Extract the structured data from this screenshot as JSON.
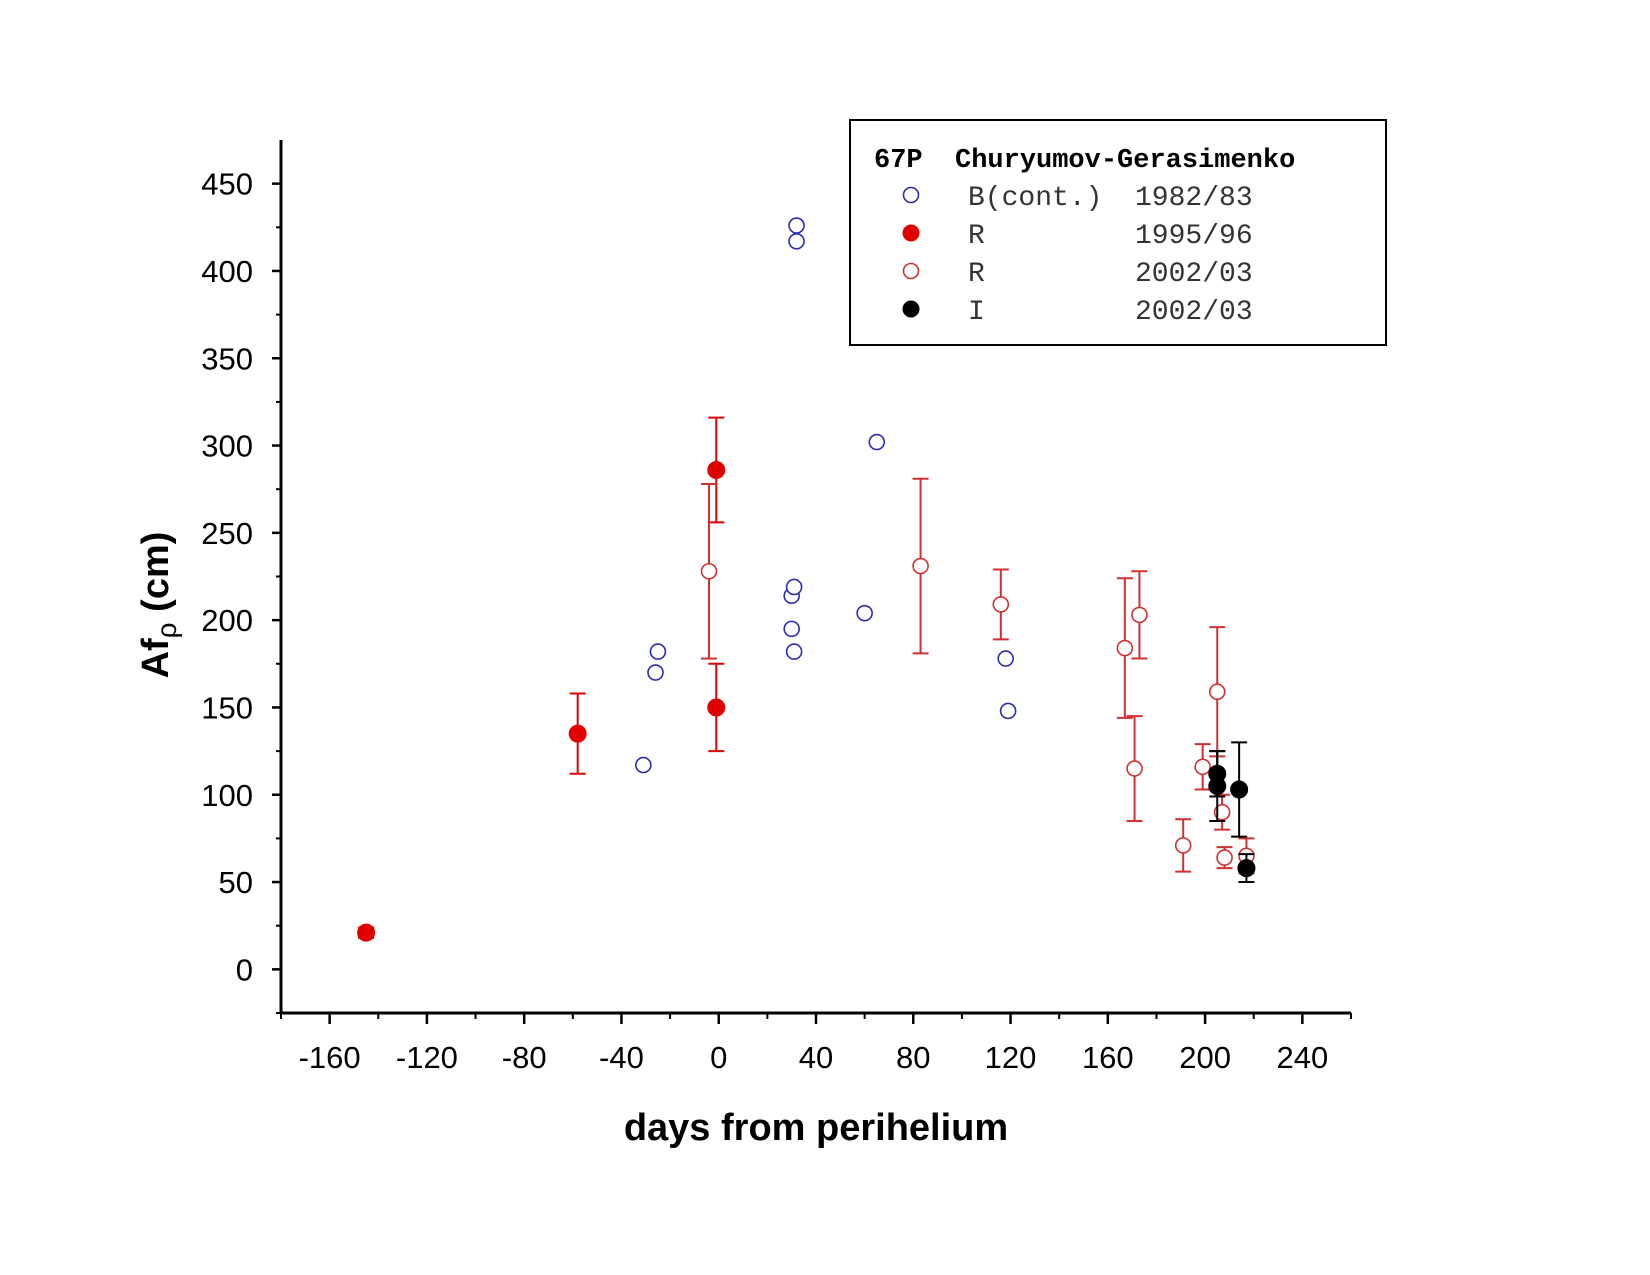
{
  "chart_data": {
    "type": "scatter",
    "xlabel": "days from perihelium",
    "ylabel_main": "Af",
    "ylabel_sub": "ρ",
    "ylabel_unit": "(cm)",
    "xlim": [
      -180,
      260
    ],
    "ylim": [
      -25,
      475
    ],
    "x_ticks": [
      -160,
      -120,
      -80,
      -40,
      0,
      40,
      80,
      120,
      160,
      200,
      240
    ],
    "y_ticks": [
      0,
      50,
      100,
      150,
      200,
      250,
      300,
      350,
      400,
      450
    ],
    "legend_position": "top-right",
    "legend_title": "67P  Churyumov-Gerasimenko",
    "series": [
      {
        "filter": "B(cont.)",
        "period": "1982/83",
        "color": "#2b2bb0",
        "marker": "open-circle",
        "points": [
          {
            "x": -31,
            "y": 117
          },
          {
            "x": -26,
            "y": 170
          },
          {
            "x": -25,
            "y": 182
          },
          {
            "x": 30,
            "y": 214
          },
          {
            "x": 31,
            "y": 219
          },
          {
            "x": 30,
            "y": 195
          },
          {
            "x": 31,
            "y": 182
          },
          {
            "x": 32,
            "y": 417
          },
          {
            "x": 32,
            "y": 426
          },
          {
            "x": 60,
            "y": 204
          },
          {
            "x": 65,
            "y": 302
          },
          {
            "x": 118,
            "y": 178
          },
          {
            "x": 119,
            "y": 148
          }
        ]
      },
      {
        "filter": "R",
        "period": "1995/96",
        "color": "#e00000",
        "marker": "filled-circle",
        "points": [
          {
            "x": -145,
            "y": 21,
            "err": 3
          },
          {
            "x": -58,
            "y": 135,
            "err": 23
          },
          {
            "x": -1,
            "y": 150,
            "err": 25
          },
          {
            "x": -1,
            "y": 286,
            "err": 30
          }
        ]
      },
      {
        "filter": "R",
        "period": "2002/03",
        "color": "#d03030",
        "marker": "open-circle",
        "points": [
          {
            "x": -4,
            "y": 228,
            "err": 50
          },
          {
            "x": 83,
            "y": 231,
            "err": 50
          },
          {
            "x": 116,
            "y": 209,
            "err": 20
          },
          {
            "x": 167,
            "y": 184,
            "err": 40
          },
          {
            "x": 171,
            "y": 115,
            "err": 30
          },
          {
            "x": 173,
            "y": 203,
            "err": 25
          },
          {
            "x": 191,
            "y": 71,
            "err": 15
          },
          {
            "x": 199,
            "y": 116,
            "err": 13
          },
          {
            "x": 205,
            "y": 159,
            "err": 37
          },
          {
            "x": 207,
            "y": 90,
            "err": 10
          },
          {
            "x": 208,
            "y": 64,
            "err": 6
          },
          {
            "x": 217,
            "y": 65,
            "err": 10
          }
        ]
      },
      {
        "filter": "I",
        "period": "2002/03",
        "color": "#000000",
        "marker": "filled-circle",
        "points": [
          {
            "x": 205,
            "y": 112,
            "err": 13
          },
          {
            "x": 205,
            "y": 105,
            "err": 20
          },
          {
            "x": 214,
            "y": 103,
            "err": 27
          },
          {
            "x": 217,
            "y": 58,
            "err": 8
          }
        ]
      }
    ]
  }
}
